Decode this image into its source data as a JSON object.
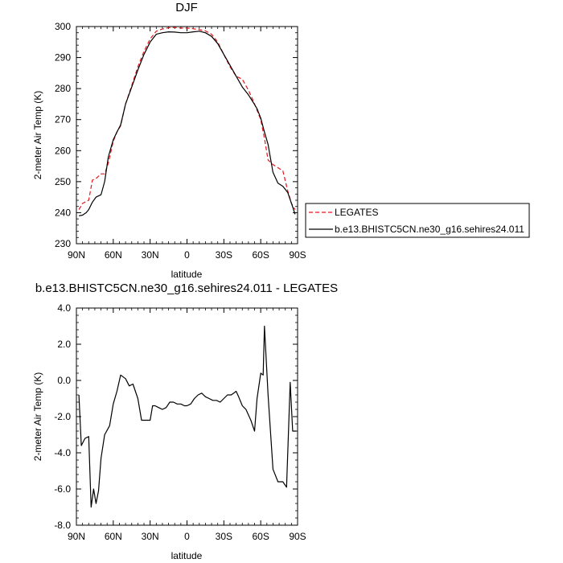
{
  "chart_data": [
    {
      "type": "line",
      "title": "DJF",
      "xlabel": "latitude",
      "ylabel": "2-meter Air Temp (K)",
      "x_tick_labels": [
        "90N",
        "60N",
        "30N",
        "0",
        "30S",
        "60S",
        "90S"
      ],
      "x_tick_values": [
        90,
        60,
        30,
        0,
        -30,
        -60,
        -90
      ],
      "y_tick_labels": [
        "230",
        "240",
        "250",
        "260",
        "270",
        "280",
        "290",
        "300"
      ],
      "xlim": [
        90,
        -90
      ],
      "ylim": [
        230,
        300
      ],
      "legend_placement": "right, outside plot",
      "series": [
        {
          "name": "LEGATES",
          "color": "#e8141c",
          "dash": "dashed",
          "x": [
            88,
            85,
            80,
            77,
            74,
            70,
            67,
            64,
            60,
            57,
            54,
            50,
            45,
            40,
            35,
            30,
            25,
            20,
            15,
            10,
            5,
            0,
            -5,
            -10,
            -15,
            -20,
            -25,
            -30,
            -35,
            -40,
            -45,
            -50,
            -54,
            -57,
            -60,
            -63,
            -66,
            -70,
            -74,
            -78,
            -82,
            -85,
            -88
          ],
          "y": [
            241,
            243,
            244,
            250.5,
            251,
            252.5,
            252.5,
            256,
            263,
            266,
            268,
            275,
            281,
            287,
            292,
            296,
            298.5,
            299.2,
            299.6,
            299.7,
            299.5,
            299.5,
            299.3,
            299,
            298.6,
            297.5,
            295,
            291,
            287,
            284,
            283,
            279.5,
            276,
            273,
            270,
            264,
            257,
            255.5,
            254.5,
            253.5,
            247,
            243,
            241
          ]
        },
        {
          "name": "b.e13.BHISTC5CN.ne30_g16.sehires24.011",
          "color": "#000000",
          "dash": "solid",
          "x": [
            88,
            85,
            82,
            80,
            77,
            74,
            70,
            67,
            64,
            60,
            57,
            54,
            50,
            45,
            40,
            35,
            30,
            25,
            20,
            15,
            10,
            5,
            0,
            -5,
            -10,
            -15,
            -20,
            -25,
            -30,
            -35,
            -40,
            -45,
            -50,
            -54,
            -57,
            -60,
            -63,
            -66,
            -70,
            -74,
            -78,
            -82,
            -85,
            -88
          ],
          "y": [
            239,
            239.2,
            240,
            241,
            243.4,
            245,
            245.8,
            250,
            258,
            263.5,
            266,
            268.3,
            275,
            280.5,
            286,
            291,
            295,
            297.5,
            298,
            298.3,
            298.2,
            298,
            298,
            298.3,
            298.5,
            298,
            296.8,
            294.5,
            291,
            287.5,
            284,
            280.5,
            278,
            275.5,
            273.5,
            270.5,
            266,
            262,
            253,
            249.5,
            248.5,
            246.5,
            243,
            239.5
          ]
        }
      ]
    },
    {
      "type": "line",
      "title": "b.e13.BHISTC5CN.ne30_g16.sehires24.011 - LEGATES",
      "xlabel": "latitude",
      "ylabel": "2-meter Air Temp (K)",
      "x_tick_labels": [
        "90N",
        "60N",
        "30N",
        "0",
        "30S",
        "60S",
        "90S"
      ],
      "x_tick_values": [
        90,
        60,
        30,
        0,
        -30,
        -60,
        -90
      ],
      "y_tick_labels": [
        "-8.0",
        "-6.0",
        "-4.0",
        "-2.0",
        "0.0",
        "2.0",
        "4.0"
      ],
      "xlim": [
        90,
        -90
      ],
      "ylim": [
        -8,
        4
      ],
      "series": [
        {
          "color": "#000000",
          "dash": "solid",
          "x": [
            88,
            86,
            83,
            80,
            78,
            76,
            74,
            72,
            70,
            67,
            63,
            60,
            57,
            54,
            50,
            47,
            44,
            40,
            37,
            33,
            30,
            28,
            26,
            23,
            20,
            17,
            14,
            11,
            8,
            5,
            2,
            0,
            -3,
            -6,
            -9,
            -12,
            -15,
            -18,
            -21,
            -24,
            -27,
            -30,
            -33,
            -36,
            -38,
            -40,
            -42,
            -45,
            -48,
            -52,
            -55,
            -57,
            -60,
            -62,
            -63,
            -66,
            -70,
            -74,
            -78,
            -81,
            -84,
            -86,
            -89
          ],
          "y": [
            -0.8,
            -3.6,
            -3.2,
            -3.1,
            -7.0,
            -6.0,
            -6.8,
            -6.1,
            -4.3,
            -3.0,
            -2.5,
            -1.3,
            -0.6,
            0.3,
            0.1,
            -0.3,
            -0.2,
            -1.0,
            -2.2,
            -2.2,
            -2.2,
            -1.4,
            -1.4,
            -1.5,
            -1.6,
            -1.5,
            -1.2,
            -1.2,
            -1.3,
            -1.3,
            -1.4,
            -1.4,
            -1.3,
            -1.0,
            -0.8,
            -0.7,
            -0.9,
            -1.0,
            -1.1,
            -1.1,
            -1.2,
            -1.0,
            -0.8,
            -0.8,
            -0.7,
            -0.6,
            -0.9,
            -1.4,
            -1.6,
            -2.2,
            -2.8,
            -1.0,
            0.4,
            0.3,
            3.0,
            -0.8,
            -4.9,
            -5.6,
            -5.6,
            -5.9,
            -0.1,
            -2.8,
            -2.8
          ]
        }
      ]
    }
  ]
}
